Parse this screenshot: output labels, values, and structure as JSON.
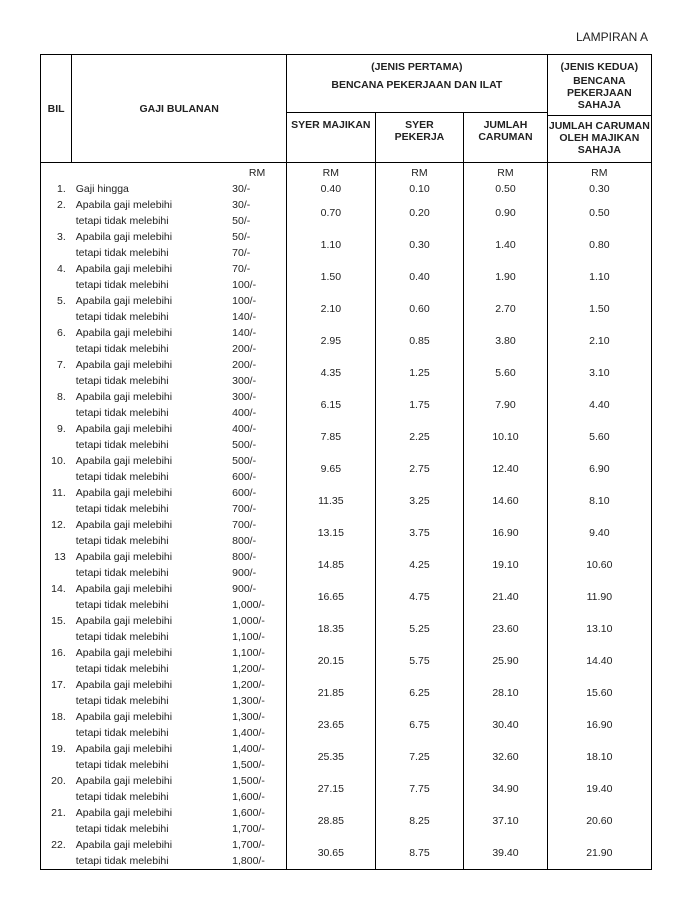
{
  "appendix": "LAMPIRAN A",
  "headers": {
    "bil": "BIL",
    "gaji": "GAJI BULANAN",
    "jenis1_top": "(JENIS PERTAMA)",
    "jenis1_sub": "BENCANA PEKERJAAN DAN ILAT",
    "jenis2_top": "(JENIS KEDUA)",
    "jenis2_sub": "BENCANA PEKERJAAN SAHAJA",
    "syer_majikan": "SYER MAJIKAN",
    "syer_pekerja": "SYER PEKERJA",
    "jumlah_caruman": "JUMLAH CARUMAN",
    "jumlah_majikan": "JUMLAH CARUMAN OLEH MAJIKAN SAHAJA",
    "rm": "RM"
  },
  "desc_first": "Gaji hingga",
  "desc_line1": "Apabila gaji melebihi",
  "desc_line2": "tetapi tidak melebihi",
  "rows": [
    {
      "n": "1.",
      "r1": "",
      "r2": "30/-",
      "sm": "0.40",
      "sp": "0.10",
      "jc": "0.50",
      "jk": "0.30"
    },
    {
      "n": "2.",
      "r1": "30/-",
      "r2": "50/-",
      "sm": "0.70",
      "sp": "0.20",
      "jc": "0.90",
      "jk": "0.50"
    },
    {
      "n": "3.",
      "r1": "50/-",
      "r2": "70/-",
      "sm": "1.10",
      "sp": "0.30",
      "jc": "1.40",
      "jk": "0.80"
    },
    {
      "n": "4.",
      "r1": "70/-",
      "r2": "100/-",
      "sm": "1.50",
      "sp": "0.40",
      "jc": "1.90",
      "jk": "1.10"
    },
    {
      "n": "5.",
      "r1": "100/-",
      "r2": "140/-",
      "sm": "2.10",
      "sp": "0.60",
      "jc": "2.70",
      "jk": "1.50"
    },
    {
      "n": "6.",
      "r1": "140/-",
      "r2": "200/-",
      "sm": "2.95",
      "sp": "0.85",
      "jc": "3.80",
      "jk": "2.10"
    },
    {
      "n": "7.",
      "r1": "200/-",
      "r2": "300/-",
      "sm": "4.35",
      "sp": "1.25",
      "jc": "5.60",
      "jk": "3.10"
    },
    {
      "n": "8.",
      "r1": "300/-",
      "r2": "400/-",
      "sm": "6.15",
      "sp": "1.75",
      "jc": "7.90",
      "jk": "4.40"
    },
    {
      "n": "9.",
      "r1": "400/-",
      "r2": "500/-",
      "sm": "7.85",
      "sp": "2.25",
      "jc": "10.10",
      "jk": "5.60"
    },
    {
      "n": "10.",
      "r1": "500/-",
      "r2": "600/-",
      "sm": "9.65",
      "sp": "2.75",
      "jc": "12.40",
      "jk": "6.90"
    },
    {
      "n": "11.",
      "r1": "600/-",
      "r2": "700/-",
      "sm": "11.35",
      "sp": "3.25",
      "jc": "14.60",
      "jk": "8.10"
    },
    {
      "n": "12.",
      "r1": "700/-",
      "r2": "800/-",
      "sm": "13.15",
      "sp": "3.75",
      "jc": "16.90",
      "jk": "9.40"
    },
    {
      "n": "13",
      "r1": "800/-",
      "r2": "900/-",
      "sm": "14.85",
      "sp": "4.25",
      "jc": "19.10",
      "jk": "10.60"
    },
    {
      "n": "14.",
      "r1": "900/-",
      "r2": "1,000/-",
      "sm": "16.65",
      "sp": "4.75",
      "jc": "21.40",
      "jk": "11.90"
    },
    {
      "n": "15.",
      "r1": "1,000/-",
      "r2": "1,100/-",
      "sm": "18.35",
      "sp": "5.25",
      "jc": "23.60",
      "jk": "13.10"
    },
    {
      "n": "16.",
      "r1": "1,100/-",
      "r2": "1,200/-",
      "sm": "20.15",
      "sp": "5.75",
      "jc": "25.90",
      "jk": "14.40"
    },
    {
      "n": "17.",
      "r1": "1,200/-",
      "r2": "1,300/-",
      "sm": "21.85",
      "sp": "6.25",
      "jc": "28.10",
      "jk": "15.60"
    },
    {
      "n": "18.",
      "r1": "1,300/-",
      "r2": "1,400/-",
      "sm": "23.65",
      "sp": "6.75",
      "jc": "30.40",
      "jk": "16.90"
    },
    {
      "n": "19.",
      "r1": "1,400/-",
      "r2": "1,500/-",
      "sm": "25.35",
      "sp": "7.25",
      "jc": "32.60",
      "jk": "18.10"
    },
    {
      "n": "20.",
      "r1": "1,500/-",
      "r2": "1,600/-",
      "sm": "27.15",
      "sp": "7.75",
      "jc": "34.90",
      "jk": "19.40"
    },
    {
      "n": "21.",
      "r1": "1,600/-",
      "r2": "1,700/-",
      "sm": "28.85",
      "sp": "8.25",
      "jc": "37.10",
      "jk": "20.60"
    },
    {
      "n": "22.",
      "r1": "1,700/-",
      "r2": "1,800/-",
      "sm": "30.65",
      "sp": "8.75",
      "jc": "39.40",
      "jk": "21.90"
    }
  ]
}
